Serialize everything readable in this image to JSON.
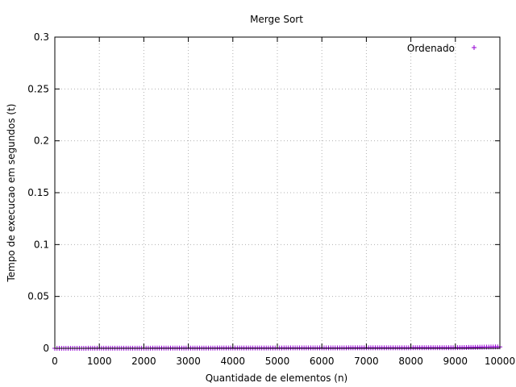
{
  "chart_data": {
    "type": "scatter",
    "title": "Merge Sort",
    "xlabel": "Quantidade de elementos (n)",
    "ylabel": "Tempo de execucao em segundos (t)",
    "xlim": [
      0,
      10000
    ],
    "ylim": [
      0,
      0.3
    ],
    "x_ticks": [
      "0",
      "1000",
      "2000",
      "3000",
      "4000",
      "5000",
      "6000",
      "7000",
      "8000",
      "9000",
      "10000"
    ],
    "y_ticks": [
      "0",
      "0.05",
      "0.1",
      "0.15",
      "0.2",
      "0.25",
      "0.3"
    ],
    "grid": true,
    "legend_position": "top-right",
    "series": [
      {
        "name": "Ordenado",
        "color": "#9400d3",
        "marker": "+",
        "x_start": 0,
        "x_end": 10000,
        "x_step": 50,
        "y_trend": [
          [
            0,
            0.0
          ],
          [
            9000,
            0.0006
          ],
          [
            10000,
            0.0014
          ]
        ]
      }
    ]
  }
}
